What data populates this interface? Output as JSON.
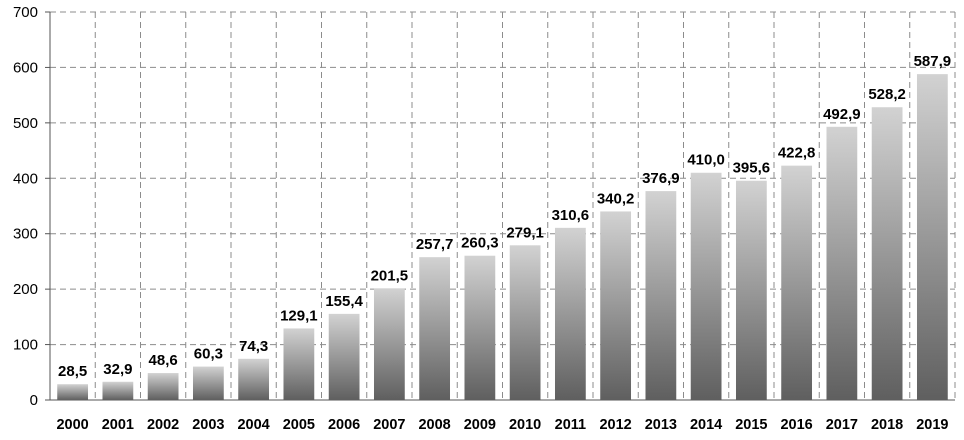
{
  "chart_data": {
    "type": "bar",
    "categories": [
      "2000",
      "2001",
      "2002",
      "2003",
      "2004",
      "2005",
      "2006",
      "2007",
      "2008",
      "2009",
      "2010",
      "2011",
      "2012",
      "2013",
      "2014",
      "2015",
      "2016",
      "2017",
      "2018",
      "2019"
    ],
    "values": [
      28.5,
      32.9,
      48.6,
      60.3,
      74.3,
      129.1,
      155.4,
      201.5,
      257.7,
      260.3,
      279.1,
      310.6,
      340.2,
      376.9,
      410.0,
      395.6,
      422.8,
      492.9,
      528.2,
      587.9
    ],
    "data_labels": [
      "28,5",
      "32,9",
      "48,6",
      "60,3",
      "74,3",
      "129,1",
      "155,4",
      "201,5",
      "257,7",
      "260,3",
      "279,1",
      "310,6",
      "340,2",
      "376,9",
      "410,0",
      "395,6",
      "422,8",
      "492,9",
      "528,2",
      "587,9"
    ],
    "y_ticks": [
      "0",
      "100",
      "200",
      "300",
      "400",
      "500",
      "600",
      "700"
    ],
    "ylim": [
      0,
      700
    ],
    "grid": true,
    "bar_gradient": [
      "#d2d2d2",
      "#5f5f5f"
    ]
  }
}
